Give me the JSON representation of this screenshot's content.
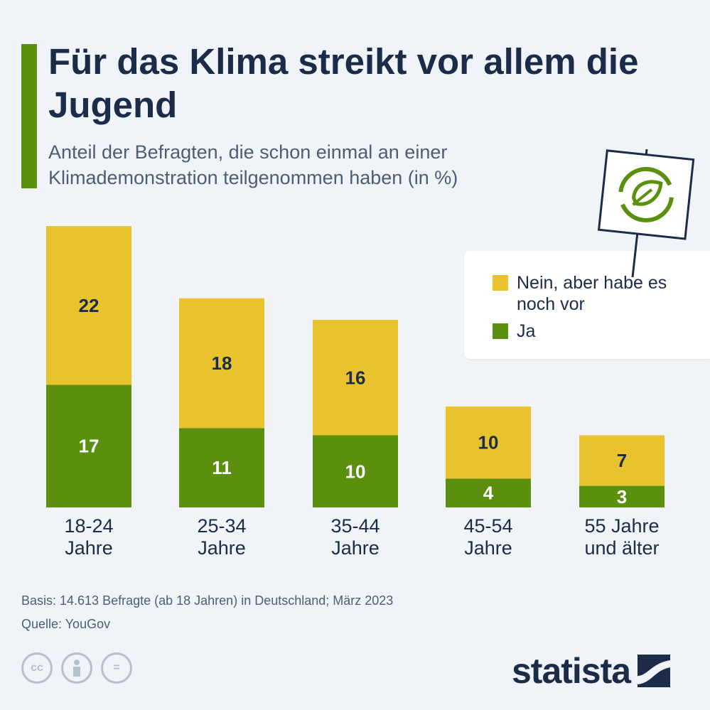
{
  "header": {
    "title": "Für das Klima streikt vor allem die Jugend",
    "subtitle": "Anteil der Befragten, die schon einmal an einer Klimademonstration teilgenommen haben (in %)"
  },
  "chart_data": {
    "type": "bar",
    "stacked": true,
    "categories": [
      [
        "18-24",
        "Jahre"
      ],
      [
        "25-34",
        "Jahre"
      ],
      [
        "35-44",
        "Jahre"
      ],
      [
        "45-54",
        "Jahre"
      ],
      [
        "55 Jahre",
        "und älter"
      ]
    ],
    "series": [
      {
        "name": "Ja",
        "color": "#5b8f0e",
        "values": [
          17,
          11,
          10,
          4,
          3
        ]
      },
      {
        "name": "Nein, aber habe es noch vor",
        "color": "#e8c32e",
        "values": [
          22,
          18,
          16,
          10,
          7
        ]
      }
    ],
    "legend_placement": "top-right",
    "grid": false
  },
  "legend": {
    "items": [
      {
        "label": "Nein, aber habe es noch vor",
        "color": "#e8c32e"
      },
      {
        "label": "Ja",
        "color": "#5b8f0e"
      }
    ]
  },
  "footer": {
    "basis": "Basis: 14.613 Befragte (ab 18 Jahren) in Deutschland; März 2023",
    "source": "Quelle: YouGov"
  },
  "icons": [
    "cc-icon",
    "attribution-icon",
    "no-derivatives-icon",
    "recycle-leaf-sign-icon"
  ],
  "cc_labels": [
    "cc",
    "",
    "="
  ],
  "brand": {
    "name": "statista",
    "accent": "#5b8f0e"
  }
}
